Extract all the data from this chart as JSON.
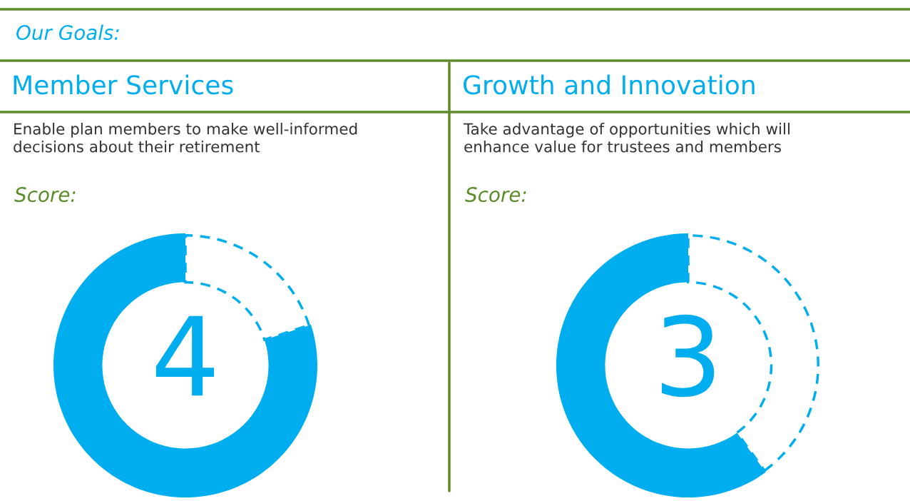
{
  "chart_data": [
    {
      "type": "other",
      "title": "Our Goals:"
    },
    {
      "type": "donut",
      "title": "Member Services",
      "subtitle": "Enable plan members to make well-informed\ndecisions about their retirement",
      "categories": [
        null,
        null
      ],
      "values": [
        80,
        20
      ],
      "colors": [
        "#00aeef",
        "#00aeef"
      ],
      "annotations": [
        "Score:",
        "4"
      ]
    },
    {
      "type": "donut",
      "title": "Growth and Innovation",
      "subtitle": "Take advantage of opportunities which will\nenhance value for trustees and members",
      "categories": [
        null,
        null
      ],
      "values": [
        60,
        40
      ],
      "colors": [
        "#00aeef",
        "#00aeef"
      ],
      "annotations": [
        "Score:",
        "3"
      ]
    }
  ]
}
